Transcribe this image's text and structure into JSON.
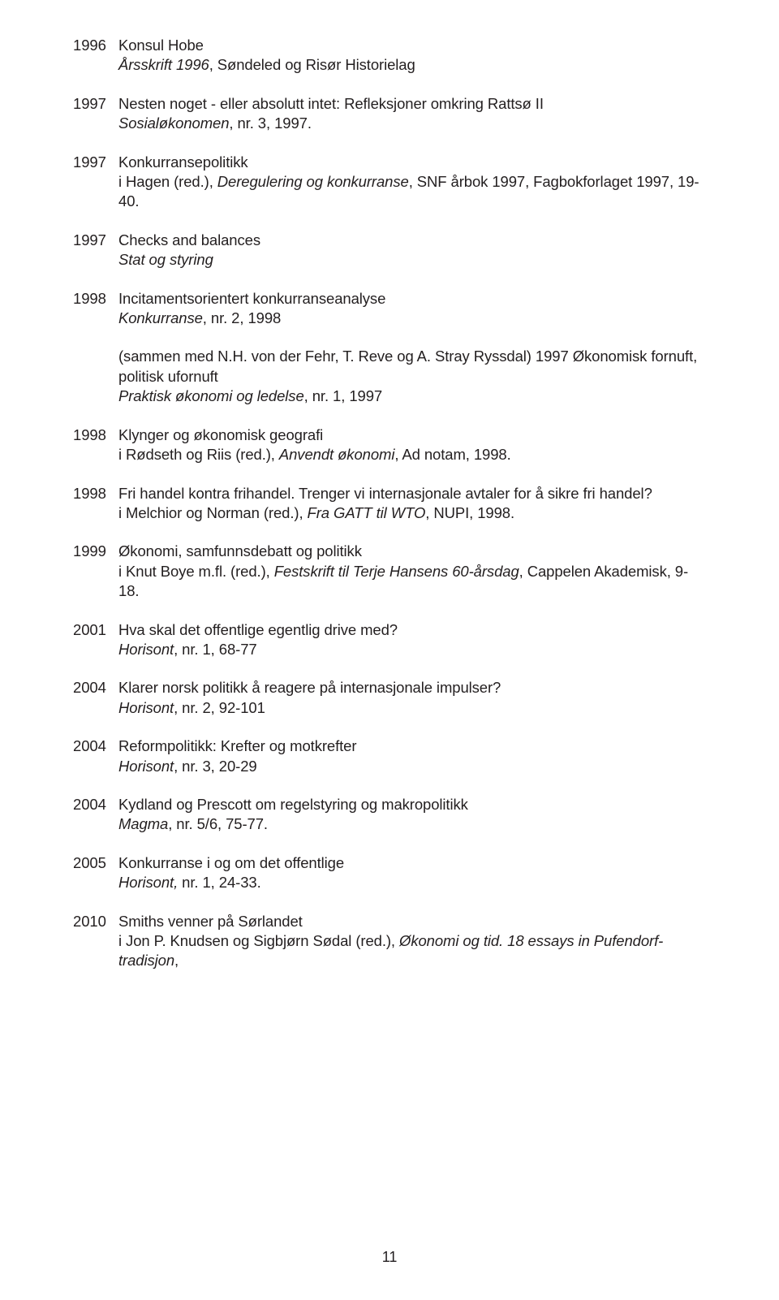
{
  "entries": [
    {
      "year": "1996",
      "lines": [
        {
          "t": "Konsul Hobe"
        },
        {
          "t": "Årsskrift 1996",
          "i": true,
          "after": ", Søndeled og Risør Historielag"
        }
      ]
    },
    {
      "year": "1997",
      "lines": [
        {
          "t": "Nesten noget - eller absolutt intet:  Refleksjoner omkring Rattsø II"
        },
        {
          "t": "Sosialøkonomen",
          "i": true,
          "after": ", nr. 3, 1997."
        }
      ]
    },
    {
      "year": "1997",
      "lines": [
        {
          "t": "Konkurransepolitikk"
        },
        {
          "t": "i Hagen (red.), ",
          "after_i": "Deregulering og konkurranse",
          "after2": ", SNF årbok 1997, Fagbokforlaget 1997,  19-40."
        }
      ]
    },
    {
      "year": "1997",
      "lines": [
        {
          "t": "Checks and balances"
        },
        {
          "t": "Stat og styring",
          "i": true
        }
      ]
    },
    {
      "year": "1998",
      "lines": [
        {
          "t": "Incitamentsorientert konkurranseanalyse"
        },
        {
          "t": "Konkurranse",
          "i": true,
          "after": ", nr. 2, 1998"
        }
      ]
    },
    {
      "year": "",
      "lines": [
        {
          "t": "(sammen med N.H. von der Fehr, T. Reve og A. Stray Ryssdal) 1997           Økonomisk fornuft, politisk ufornuft"
        },
        {
          "t": "Praktisk økonomi og ledelse",
          "i": true,
          "after": ", nr. 1, 1997"
        }
      ]
    },
    {
      "year": "1998",
      "lines": [
        {
          "t": "Klynger og økonomisk geografi"
        },
        {
          "t": "i Rødseth og Riis (red.), ",
          "after_i": "Anvendt økonomi",
          "after2": ", Ad notam, 1998."
        }
      ]
    },
    {
      "year": "1998",
      "lines": [
        {
          "t": "Fri handel kontra frihandel.  Trenger vi internasjonale avtaler for å sikre fri handel?"
        },
        {
          "t": "i Melchior og Norman (red.), ",
          "after_i": "Fra GATT til WTO",
          "after2": ", NUPI, 1998."
        }
      ]
    },
    {
      "year": "1999",
      "lines": [
        {
          "t": "Økonomi, samfunnsdebatt og politikk"
        },
        {
          "t": "i Knut Boye m.fl. (red.), ",
          "after_i": "Festskrift til Terje Hansens 60-årsdag",
          "after2": ", Cappelen Akademisk, 9-18."
        }
      ]
    },
    {
      "year": "2001",
      "lines": [
        {
          "t": "Hva skal det offentlige egentlig drive med?"
        },
        {
          "t": "Horisont",
          "i": true,
          "after": ", nr. 1, 68-77"
        }
      ]
    },
    {
      "year": "2004",
      "lines": [
        {
          "t": "Klarer norsk politikk å reagere på internasjonale impulser?"
        },
        {
          "t": "Horisont",
          "i": true,
          "after": ", nr. 2, 92-101"
        }
      ]
    },
    {
      "year": "2004",
      "lines": [
        {
          "t": "Reformpolitikk: Krefter og motkrefter"
        },
        {
          "t": "Horisont",
          "i": true,
          "after": ", nr. 3, 20-29"
        }
      ]
    },
    {
      "year": "2004",
      "lines": [
        {
          "t": "Kydland og Prescott om regelstyring og makropolitikk"
        },
        {
          "t": "Magma",
          "i": true,
          "after": ", nr. 5/6, 75-77."
        }
      ]
    },
    {
      "year": "2005",
      "lines": [
        {
          "t": "Konkurranse i og om det offentlige"
        },
        {
          "t": "Horisont,",
          "i": true,
          "after": " nr. 1, 24-33."
        }
      ]
    },
    {
      "year": "2010",
      "lines": [
        {
          "t": "Smiths venner på Sørlandet"
        },
        {
          "t": "i Jon P. Knudsen og Sigbjørn Sødal (red.), ",
          "after_i": "Økonomi og tid.  18 essays in Pufendorf-tradisjon",
          "after2": ","
        }
      ]
    }
  ],
  "pagenum": "11",
  "colors": {
    "text": "#231f20",
    "bg": "#ffffff"
  }
}
